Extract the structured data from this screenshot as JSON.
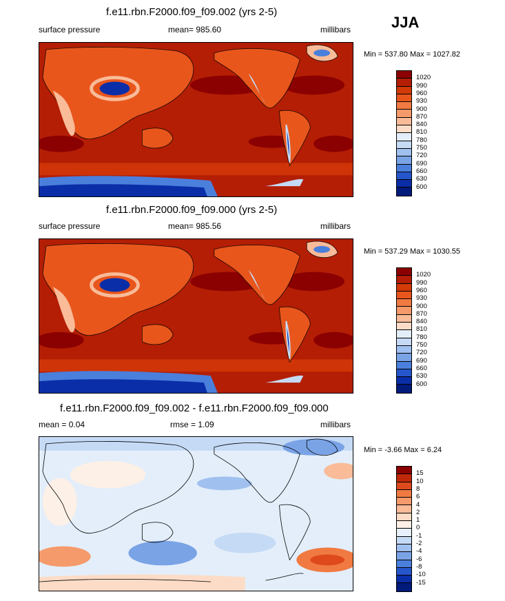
{
  "season": "JJA",
  "panels": [
    {
      "title": "f.e11.rbn.F2000.f09_f09.002 (yrs 2-5)",
      "left_label": "surface pressure",
      "center_label": "mean= 985.60",
      "units": "millibars",
      "minmax": "Min = 537.80 Max = 1027.82",
      "colorbar_labels": [
        "1020",
        "990",
        "960",
        "930",
        "900",
        "870",
        "840",
        "810",
        "780",
        "750",
        "720",
        "690",
        "660",
        "630",
        "600"
      ],
      "colorbar_colors": [
        "#8b0000",
        "#b31e05",
        "#d43a08",
        "#e8561c",
        "#f07a42",
        "#f59a6a",
        "#f9bb98",
        "#fcdcc6",
        "#e3eefa",
        "#c5daf5",
        "#a0c0ef",
        "#7aa3e6",
        "#4b7fdc",
        "#2556cc",
        "#0a2ea8",
        "#021a7a"
      ],
      "map_colors": {
        "ocean": "#b31e05",
        "land": "#e8561c",
        "high": "#8b0000",
        "low": "#0a2ea8",
        "mid": "#f9bb98"
      }
    },
    {
      "title": "f.e11.rbn.F2000.f09_f09.000 (yrs 2-5)",
      "left_label": "surface pressure",
      "center_label": "mean= 985.56",
      "units": "millibars",
      "minmax": "Min = 537.29 Max = 1030.55",
      "colorbar_labels": [
        "1020",
        "990",
        "960",
        "930",
        "900",
        "870",
        "840",
        "810",
        "780",
        "750",
        "720",
        "690",
        "660",
        "630",
        "600"
      ],
      "colorbar_colors": [
        "#8b0000",
        "#b31e05",
        "#d43a08",
        "#e8561c",
        "#f07a42",
        "#f59a6a",
        "#f9bb98",
        "#fcdcc6",
        "#e3eefa",
        "#c5daf5",
        "#a0c0ef",
        "#7aa3e6",
        "#4b7fdc",
        "#2556cc",
        "#0a2ea8",
        "#021a7a"
      ],
      "map_colors": {
        "ocean": "#b31e05",
        "land": "#e8561c",
        "high": "#8b0000",
        "low": "#0a2ea8",
        "mid": "#f9bb98"
      }
    },
    {
      "title": "f.e11.rbn.F2000.f09_f09.002 - f.e11.rbn.F2000.f09_f09.000",
      "left_label": "mean =  0.04",
      "center_label": "rmse =  1.09",
      "units": "millibars",
      "minmax": "Min =  -3.66 Max =   6.24",
      "colorbar_labels": [
        "15",
        "10",
        "8",
        "6",
        "4",
        "2",
        "1",
        "0",
        "-1",
        "-2",
        "-4",
        "-6",
        "-8",
        "-10",
        "-15"
      ],
      "colorbar_colors": [
        "#8b0000",
        "#c0280a",
        "#de4a1c",
        "#f07a42",
        "#f59a6a",
        "#f9bb98",
        "#fcdcc6",
        "#fdf0e6",
        "#e8f1fb",
        "#c5daf5",
        "#a0c0ef",
        "#7aa3e6",
        "#4b7fdc",
        "#2556cc",
        "#0a2ea8",
        "#021a7a"
      ],
      "map_colors": {
        "ocean": "#e3eefa",
        "land": "#e3eefa",
        "high": "#f07a42",
        "low": "#7aa3e6",
        "mid": "#fcdcc6"
      }
    }
  ]
}
